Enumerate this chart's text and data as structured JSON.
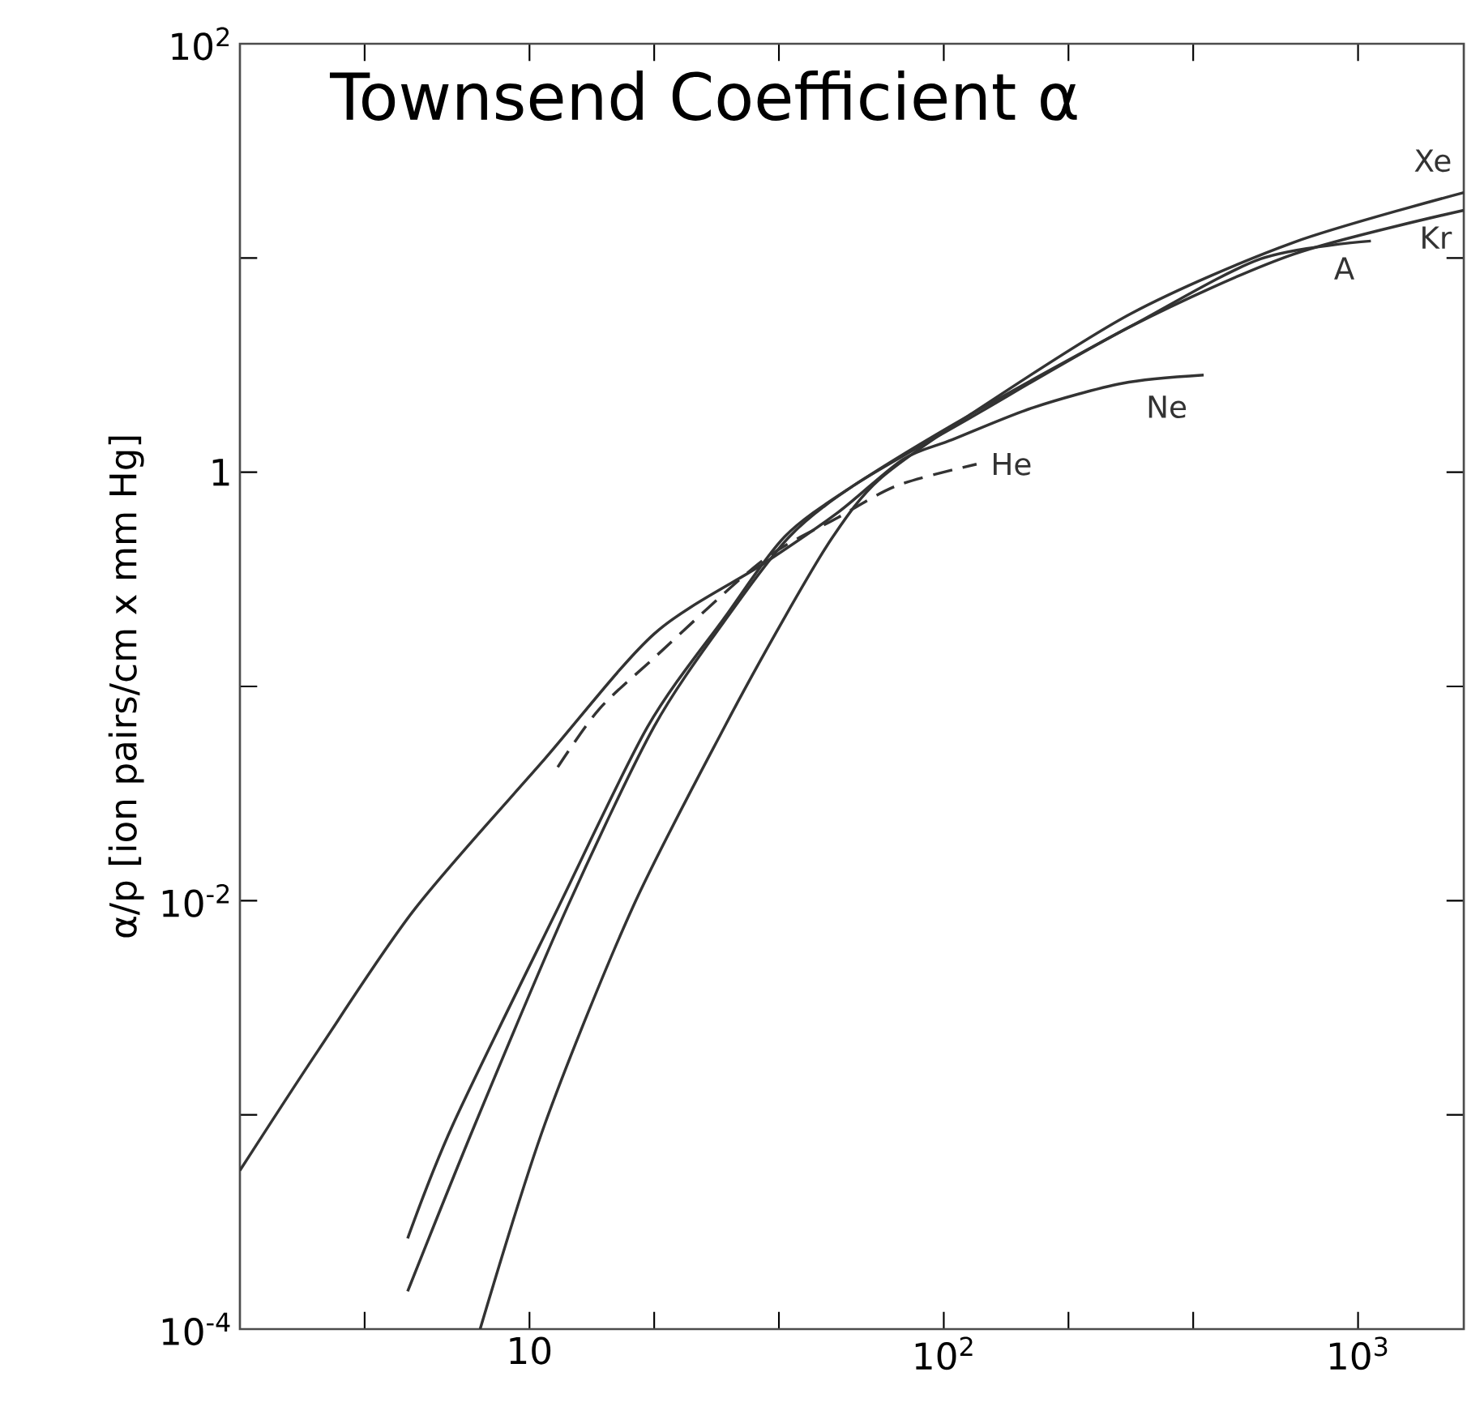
{
  "chart_data": {
    "type": "line",
    "title": "Townsend Coefficient α",
    "ylabel": "α/p [ion pairs/cm x mm Hg]",
    "log": "xy",
    "xlim": [
      2,
      1800
    ],
    "ylim": [
      0.0001,
      100
    ],
    "xticks": [
      {
        "value": 4,
        "label": null
      },
      {
        "value": 10,
        "label": "10"
      },
      {
        "value": 20,
        "label": null
      },
      {
        "value": 40,
        "label": null
      },
      {
        "value": 100,
        "label": "10$^{2}$"
      },
      {
        "value": 200,
        "label": null
      },
      {
        "value": 400,
        "label": null
      },
      {
        "value": 1000,
        "label": "10$^{3}$"
      }
    ],
    "yticks": [
      {
        "value": 0.0001,
        "label": "10$^{-4}$"
      },
      {
        "value": 0.001,
        "label": null
      },
      {
        "value": 0.01,
        "label": "10$^{-2}$"
      },
      {
        "value": 0.1,
        "label": null
      },
      {
        "value": 1,
        "label": "1"
      },
      {
        "value": 10,
        "label": null
      },
      {
        "value": 100,
        "label": "10$^{2}$"
      }
    ],
    "series": [
      {
        "name": "Xe",
        "color": "#333333",
        "line_style": "solid",
        "x": [
          7.6,
          10.9,
          17.7,
          29.6,
          41.3,
          54,
          69.7,
          115,
          283,
          697,
          1800
        ],
        "values": [
          0.0001,
          0.00091,
          0.0092,
          0.065,
          0.21,
          0.5,
          0.92,
          1.84,
          5.5,
          11.8,
          20.2
        ]
      },
      {
        "name": "Kr",
        "color": "#333333",
        "line_style": "solid",
        "x": [
          5.08,
          7.4,
          12.3,
          20,
          30,
          42.4,
          60.8,
          115,
          283,
          697,
          1800
        ],
        "values": [
          0.00015,
          0.00091,
          0.0092,
          0.065,
          0.21,
          0.5,
          0.87,
          1.78,
          4.8,
          10.4,
          16.7
        ]
      },
      {
        "name": "A",
        "color": "#333333",
        "line_style": "solid",
        "x": [
          5.08,
          6.55,
          11.7,
          19.3,
          29.6,
          41.3,
          60.8,
          115,
          283,
          582,
          1074
        ],
        "values": [
          0.000265,
          0.00091,
          0.0092,
          0.065,
          0.21,
          0.5,
          0.87,
          1.84,
          4.8,
          9.9,
          12
        ]
      },
      {
        "name": "Ne",
        "color": "#333333",
        "line_style": "solid",
        "x": [
          2,
          3.09,
          5.3,
          10.9,
          20,
          36.4,
          55.6,
          79.8,
          105,
          164,
          270,
          424
        ],
        "values": [
          0.00055,
          0.002,
          0.0092,
          0.046,
          0.176,
          0.37,
          0.65,
          1.15,
          1.42,
          2.0,
          2.6,
          2.84
        ]
      },
      {
        "name": "He",
        "color": "#333333",
        "line_style": "dashed",
        "x": [
          11.7,
          14.7,
          20,
          36.4,
          55.6,
          77.6,
          120
        ],
        "values": [
          0.042,
          0.078,
          0.136,
          0.385,
          0.615,
          0.87,
          1.09
        ]
      }
    ]
  }
}
